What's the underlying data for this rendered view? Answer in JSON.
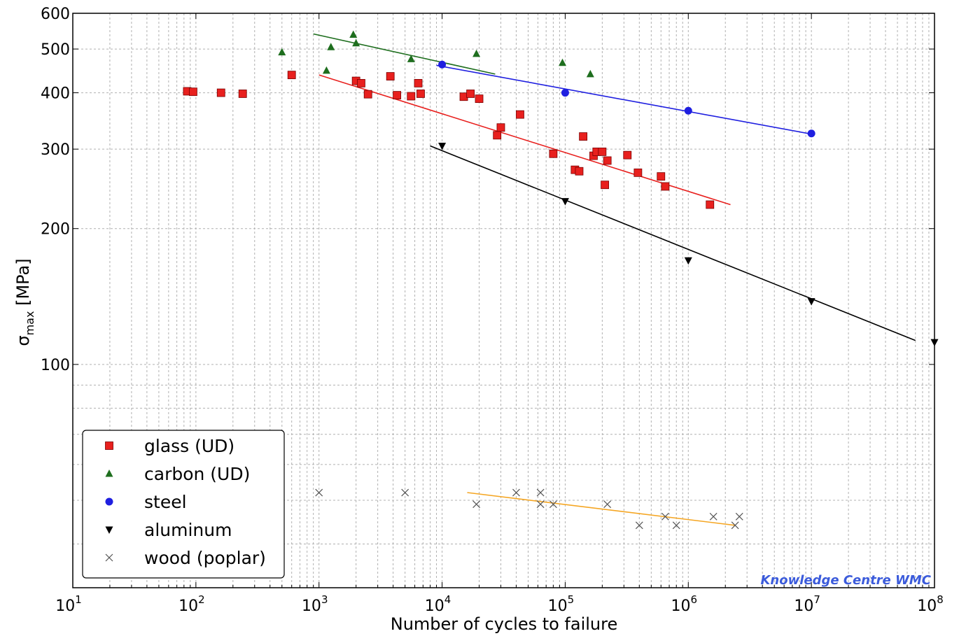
{
  "chart_data": {
    "type": "scatter",
    "x_scale": "log",
    "y_scale": "log",
    "xlim": [
      10,
      100000000
    ],
    "ylim": [
      32,
      600
    ],
    "grid": true,
    "xlabel": "Number of cycles to failure",
    "ylabel": "σmax [MPa]",
    "ylabel_main": "σ",
    "ylabel_sub": "max",
    "ylabel_units": " [MPa]",
    "x_ticks": [
      10,
      100,
      1000,
      10000,
      100000,
      1000000,
      10000000,
      100000000
    ],
    "x_tick_bases": [
      "10",
      "10",
      "10",
      "10",
      "10",
      "10",
      "10",
      "10"
    ],
    "x_tick_exps": [
      "1",
      "2",
      "3",
      "4",
      "5",
      "6",
      "7",
      "8"
    ],
    "y_ticks": [
      100,
      200,
      300,
      400,
      500,
      600
    ],
    "y_tick_labels": [
      "100",
      "200",
      "300",
      "400",
      "500",
      "600"
    ],
    "legend_position": "lower-left",
    "watermark": "Knowledge Centre WMC",
    "series": [
      {
        "name": "glass (UD)",
        "marker": "square",
        "color": "#e8201e",
        "points": [
          [
            85,
            403
          ],
          [
            95,
            402
          ],
          [
            160,
            400
          ],
          [
            240,
            398
          ],
          [
            600,
            438
          ],
          [
            2000,
            425
          ],
          [
            2200,
            420
          ],
          [
            2500,
            397
          ],
          [
            3800,
            435
          ],
          [
            4300,
            395
          ],
          [
            5600,
            393
          ],
          [
            6400,
            420
          ],
          [
            6700,
            398
          ],
          [
            15000,
            392
          ],
          [
            17000,
            398
          ],
          [
            20000,
            388
          ],
          [
            28000,
            322
          ],
          [
            30000,
            335
          ],
          [
            43000,
            358
          ],
          [
            80000,
            293
          ],
          [
            120000,
            270
          ],
          [
            130000,
            268
          ],
          [
            140000,
            320
          ],
          [
            170000,
            290
          ],
          [
            180000,
            296
          ],
          [
            200000,
            296
          ],
          [
            210000,
            250
          ],
          [
            220000,
            283
          ],
          [
            320000,
            291
          ],
          [
            390000,
            266
          ],
          [
            600000,
            261
          ],
          [
            650000,
            248
          ],
          [
            1500000,
            226
          ]
        ],
        "fit": [
          [
            1000,
            438
          ],
          [
            2200000,
            226
          ]
        ]
      },
      {
        "name": "carbon (UD)",
        "marker": "triangle-up",
        "color": "#1e6e1e",
        "points": [
          [
            500,
            492
          ],
          [
            1150,
            448
          ],
          [
            1250,
            505
          ],
          [
            1900,
            538
          ],
          [
            2000,
            515
          ],
          [
            5600,
            475
          ],
          [
            19000,
            488
          ],
          [
            95000,
            466
          ],
          [
            160000,
            440
          ]
        ],
        "fit": [
          [
            900,
            540
          ],
          [
            27000,
            440
          ]
        ]
      },
      {
        "name": "steel",
        "marker": "circle",
        "color": "#1f1fe0",
        "points": [
          [
            10000,
            462
          ],
          [
            100000,
            400
          ],
          [
            1000000,
            365
          ],
          [
            10000000,
            325
          ]
        ],
        "fit": [
          [
            9000,
            460
          ],
          [
            10000000,
            324
          ]
        ]
      },
      {
        "name": "aluminum",
        "marker": "triangle-down",
        "color": "#000000",
        "points": [
          [
            10000,
            305
          ],
          [
            100000,
            230
          ],
          [
            1000000,
            170
          ],
          [
            10000000,
            138
          ],
          [
            100000000,
            112
          ]
        ],
        "fit": [
          [
            8000,
            305
          ],
          [
            70000000,
            113
          ]
        ]
      },
      {
        "name": "wood (poplar)",
        "marker": "x",
        "color": "#555555",
        "points": [
          [
            1000,
            52
          ],
          [
            5000,
            52
          ],
          [
            19000,
            49
          ],
          [
            40000,
            52
          ],
          [
            63000,
            52
          ],
          [
            63000,
            49
          ],
          [
            80000,
            49
          ],
          [
            220000,
            49
          ],
          [
            400000,
            44
          ],
          [
            650000,
            46
          ],
          [
            800000,
            44
          ],
          [
            1600000,
            46
          ],
          [
            2400000,
            44
          ],
          [
            2600000,
            46
          ]
        ],
        "fit": [
          [
            16000,
            52
          ],
          [
            2400000,
            44
          ]
        ],
        "fit_color": "#f5a623"
      }
    ]
  }
}
